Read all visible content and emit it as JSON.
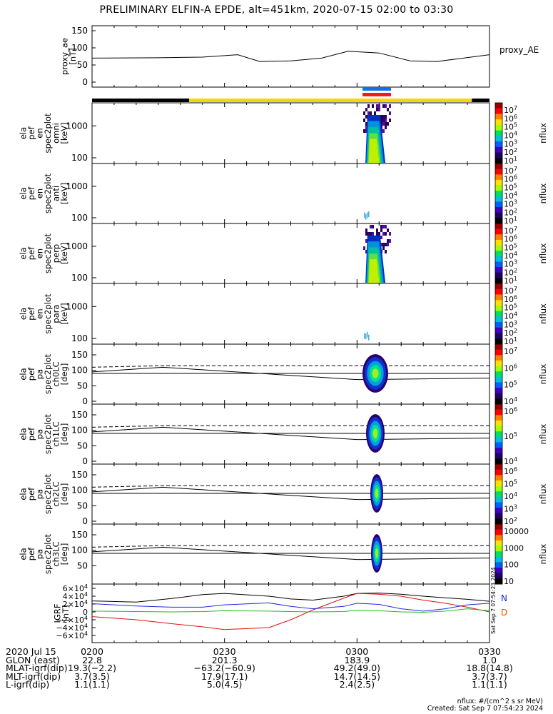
{
  "title": "PRELIMINARY ELFIN-A EPDE, alt=451km, 2020-07-15 02:00 to 03:30",
  "colors": {
    "ne_bar": "#1e6de0",
    "sw_bar": "#ee1c1c",
    "night": "#000000",
    "day": "#f5d800",
    "n_component": "#1d2bd8",
    "d_component": "#e05a00",
    "grf_h": "#000000",
    "grf_z": "#dd1111",
    "grf_c": "#1d2bd8",
    "grf_g": "#22bb22"
  },
  "panels": {
    "proxy_ae": {
      "ylabel": [
        "proxy_ae",
        "[nT]"
      ],
      "yticks": [
        "150",
        "100",
        "50",
        "0"
      ],
      "legend": "proxy_AE"
    },
    "spectro": [
      {
        "ylabel": [
          "ela",
          "pef",
          "en",
          "spec2plot",
          "omni",
          "[keV]"
        ],
        "yticks": [
          "1000",
          "100"
        ],
        "cbar_ticks": [
          "10^7",
          "10^6",
          "10^5",
          "10^4",
          "10^3",
          "10^2",
          "10^1"
        ],
        "cbar_title": "nflux"
      },
      {
        "ylabel": [
          "ela",
          "pef",
          "en",
          "spec2plot",
          "anti",
          "[keV]"
        ],
        "yticks": [
          "1000",
          "100"
        ],
        "cbar_ticks": [
          "10^7",
          "10^6",
          "10^5",
          "10^4",
          "10^3",
          "10^2",
          "10^1"
        ],
        "cbar_title": "nflux"
      },
      {
        "ylabel": [
          "ela",
          "pef",
          "en",
          "spec2plot",
          "perp",
          "[keV]"
        ],
        "yticks": [
          "1000",
          "100"
        ],
        "cbar_ticks": [
          "10^7",
          "10^6",
          "10^5",
          "10^4",
          "10^3",
          "10^2",
          "10^1"
        ],
        "cbar_title": "nflux"
      },
      {
        "ylabel": [
          "ela",
          "pef",
          "en",
          "spec2plot",
          "para",
          "[keV]"
        ],
        "yticks": [
          "1000",
          "100"
        ],
        "cbar_ticks": [
          "10^7",
          "10^6",
          "10^5",
          "10^4",
          "10^3",
          "10^2",
          "10^1"
        ],
        "cbar_title": "nflux"
      }
    ],
    "pitch": [
      {
        "ylabel": [
          "ela",
          "pef",
          "pa",
          "spec2plot",
          "ch0LC",
          "[deg]"
        ],
        "yticks": [
          "150",
          "100",
          "50",
          "0"
        ],
        "cbar_ticks": [
          "10^7",
          "10^6",
          "10^5",
          "10^4"
        ],
        "cbar_title": "nflux"
      },
      {
        "ylabel": [
          "ela",
          "pef",
          "pa",
          "spec2plot",
          "ch1LC",
          "[deg]"
        ],
        "yticks": [
          "150",
          "100",
          "50",
          "0"
        ],
        "cbar_ticks": [
          "10^6",
          "10^5",
          "10^4"
        ],
        "cbar_title": "nflux"
      },
      {
        "ylabel": [
          "ela",
          "pef",
          "pa",
          "spec2plot",
          "ch2LC",
          "[deg]"
        ],
        "yticks": [
          "150",
          "100",
          "50",
          "0"
        ],
        "cbar_ticks": [
          "10^6",
          "10^5",
          "10^4",
          "10^3",
          "10^2"
        ],
        "cbar_title": "nflux"
      },
      {
        "ylabel": [
          "ela",
          "pef",
          "pa",
          "spec2plot",
          "ch3LC",
          "[deg]"
        ],
        "yticks": [
          "150",
          "100",
          "50"
        ],
        "cbar_ticks": [
          "10000",
          "1000",
          "100",
          "10"
        ],
        "cbar_title": "nflux"
      }
    ],
    "igrf": {
      "ylabel": [
        "IGRF",
        "[nT]"
      ],
      "yticks": [
        "6×10^4",
        "4×10^4",
        "2×10^4",
        "0",
        "−2×10^4",
        "−4×10^4",
        "−6×10^4"
      ],
      "right_labels": [
        "N",
        "D"
      ],
      "stamp": "Sat Sep  7 07:54:23 2024"
    }
  },
  "footer": {
    "rows": [
      {
        "label": "2020 Jul 15",
        "values": [
          "0200",
          "0230",
          "0300",
          "0330"
        ]
      },
      {
        "label": "GLON (east)",
        "values": [
          "22.8",
          "201.3",
          "183.9",
          "1.0"
        ]
      },
      {
        "label": "MLAT-igrf(dip)",
        "values": [
          "19.3(−2.2)",
          "−63.2(−60.9)",
          "49.2(49.0)",
          "18.8(14.8)"
        ]
      },
      {
        "label": "MLT-igrf(dip)",
        "values": [
          "3.7(3.5)",
          "17.9(17.1)",
          "14.7(14.5)",
          "3.7(3.7)"
        ]
      },
      {
        "label": "L-igrf(dip)",
        "values": [
          "1.1(1.1)",
          "5.0(4.5)",
          "2.4(2.5)",
          "1.1(1.1)"
        ]
      }
    ],
    "units_note": "nflux: #/(cm^2 s sr MeV)",
    "created": "Created: Sat Sep  7 07:54:23 2024"
  },
  "chart_data": [
    {
      "type": "line",
      "title": "PRELIMINARY ELFIN-A EPDE, alt=451km, 2020-07-15 02:00 to 03:30",
      "ylabel": "proxy_ae [nT]",
      "ylim": [
        0,
        150
      ],
      "x": [
        "0200",
        "0215",
        "0225",
        "0235",
        "0245",
        "0250",
        "0255",
        "0300",
        "0310",
        "0315",
        "0320",
        "0330"
      ],
      "series": [
        {
          "name": "proxy_AE",
          "values": [
            70,
            71,
            73,
            80,
            60,
            62,
            70,
            90,
            85,
            62,
            60,
            80
          ]
        }
      ]
    },
    {
      "type": "heatmap",
      "ylabel": "ela pef en spec2plot omni [keV]",
      "y_scale": "log",
      "yticks": [
        100,
        1000
      ],
      "color_scale": "nflux",
      "color_range": [
        "10^1",
        "10^7"
      ],
      "active_time": [
        "0301",
        "0305"
      ]
    },
    {
      "type": "heatmap",
      "ylabel": "ela pef en spec2plot anti [keV]",
      "y_scale": "log",
      "yticks": [
        100,
        1000
      ],
      "color_scale": "nflux",
      "color_range": [
        "10^1",
        "10^7"
      ],
      "active_time": [
        "0301",
        "0302"
      ]
    },
    {
      "type": "heatmap",
      "ylabel": "ela pef en spec2plot perp [keV]",
      "y_scale": "log",
      "yticks": [
        100,
        1000
      ],
      "color_scale": "nflux",
      "color_range": [
        "10^1",
        "10^7"
      ],
      "active_time": [
        "0301",
        "0305"
      ]
    },
    {
      "type": "heatmap",
      "ylabel": "ela pef en spec2plot para [keV]",
      "y_scale": "log",
      "yticks": [
        100,
        1000
      ],
      "color_scale": "nflux",
      "color_range": [
        "10^1",
        "10^7"
      ],
      "active_time": [
        "0301",
        "0302"
      ]
    },
    {
      "type": "heatmap",
      "ylabel": "ela pef pa spec2plot ch0LC [deg]",
      "ylim": [
        0,
        180
      ],
      "color_scale": "nflux",
      "lines": {
        "loss_cone": [
          [
            0,
            95
          ],
          [
            16,
            110
          ],
          [
            60,
            70
          ],
          [
            90,
            75
          ]
        ],
        "anti_loss_cone_dashed": [
          [
            0,
            110
          ],
          [
            16,
            115
          ],
          [
            90,
            115
          ]
        ],
        "ninety": 90
      }
    },
    {
      "type": "heatmap",
      "ylabel": "ela pef pa spec2plot ch1LC [deg]",
      "ylim": [
        0,
        180
      ],
      "color_scale": "nflux"
    },
    {
      "type": "heatmap",
      "ylabel": "ela pef pa spec2plot ch2LC [deg]",
      "ylim": [
        0,
        180
      ],
      "color_scale": "nflux"
    },
    {
      "type": "heatmap",
      "ylabel": "ela pef pa spec2plot ch3LC [deg]",
      "ylim": [
        0,
        180
      ],
      "color_scale": "nflux"
    },
    {
      "type": "line",
      "ylabel": "IGRF [nT]",
      "ylim": [
        -60000,
        60000
      ],
      "x_minutes": [
        0,
        10,
        18,
        25,
        30,
        40,
        45,
        50,
        57,
        60,
        65,
        70,
        75,
        80,
        85,
        90
      ],
      "series": [
        {
          "name": "N",
          "values": [
            28000,
            25000,
            34000,
            44000,
            47000,
            40000,
            33000,
            30000,
            40000,
            47000,
            48000,
            45000,
            40000,
            36000,
            32000,
            27000
          ]
        },
        {
          "name": "D",
          "values": [
            -12000,
            -20000,
            -30000,
            -38000,
            -45000,
            -40000,
            -20000,
            5000,
            35000,
            47000,
            45000,
            40000,
            30000,
            22000,
            12000,
            0
          ]
        },
        {
          "values": [
            21000,
            15000,
            12000,
            12000,
            18000,
            23000,
            14000,
            8000,
            14000,
            22000,
            19000,
            8000,
            2000,
            8000,
            18000,
            22000
          ]
        },
        {
          "values": [
            2000,
            1000,
            0,
            1000,
            3000,
            2000,
            1000,
            0,
            1000,
            4000,
            3000,
            0,
            -1000,
            2000,
            8000,
            3000
          ]
        }
      ]
    }
  ]
}
